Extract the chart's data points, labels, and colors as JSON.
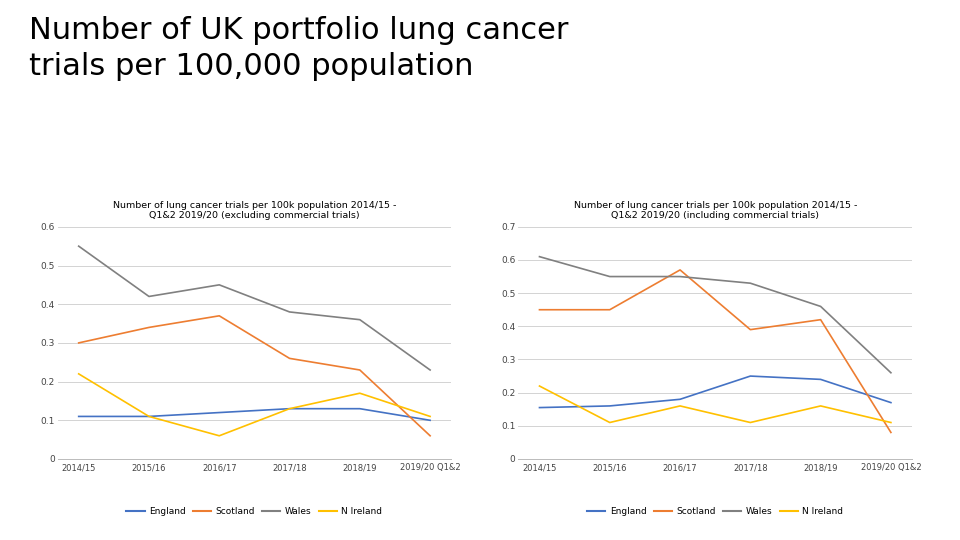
{
  "title": "Number of UK portfolio lung cancer\ntrials per 100,000 population",
  "title_fontsize": 22,
  "background_color": "#ffffff",
  "x_labels": [
    "2014/15",
    "2015/16",
    "2016/17",
    "2017/18",
    "2018/19",
    "2019/20 Q1&2"
  ],
  "chart1": {
    "subtitle": "Number of lung cancer trials per 100k population 2014/15 -\nQ1&2 2019/20 (excluding commercial trials)",
    "ylim": [
      0,
      0.6
    ],
    "yticks": [
      0,
      0.1,
      0.2,
      0.3,
      0.4,
      0.5,
      0.6
    ],
    "england": [
      0.11,
      0.11,
      0.12,
      0.13,
      0.13,
      0.1
    ],
    "scotland": [
      0.3,
      0.34,
      0.37,
      0.26,
      0.23,
      0.06
    ],
    "wales": [
      0.55,
      0.42,
      0.45,
      0.38,
      0.36,
      0.23
    ],
    "nireland": [
      0.22,
      0.11,
      0.06,
      0.13,
      0.17,
      0.11
    ]
  },
  "chart2": {
    "subtitle": "Number of lung cancer trials per 100k population 2014/15 -\nQ1&2 2019/20 (including commercial trials)",
    "ylim": [
      0,
      0.7
    ],
    "yticks": [
      0,
      0.1,
      0.2,
      0.3,
      0.4,
      0.5,
      0.6,
      0.7
    ],
    "england": [
      0.155,
      0.16,
      0.18,
      0.25,
      0.24,
      0.17
    ],
    "scotland": [
      0.45,
      0.45,
      0.57,
      0.39,
      0.42,
      0.08
    ],
    "wales": [
      0.61,
      0.55,
      0.55,
      0.53,
      0.46,
      0.26
    ],
    "nireland": [
      0.22,
      0.11,
      0.16,
      0.11,
      0.16,
      0.11
    ]
  },
  "colors": {
    "england": "#4472c4",
    "scotland": "#ed7d31",
    "wales": "#808080",
    "nireland": "#ffc000"
  },
  "legend_labels": [
    "England",
    "Scotland",
    "Wales",
    "N Ireland"
  ]
}
